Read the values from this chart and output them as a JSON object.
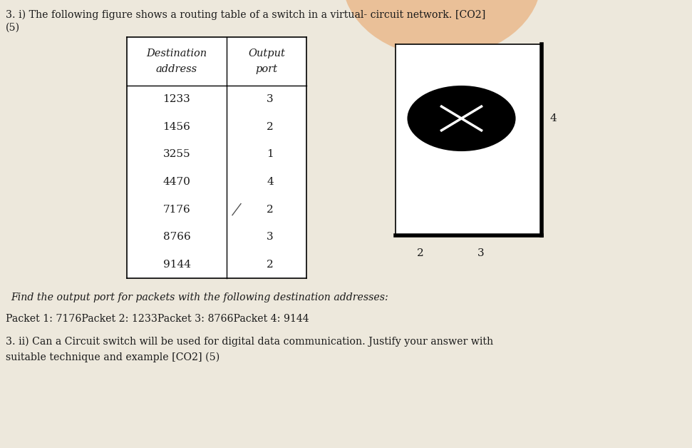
{
  "title_line1": "3. i) The following figure shows a routing table of a switch in a virtual- circuit network. [CO2]",
  "title_line2": "(5)",
  "table_headers_col1": [
    "Destination",
    "address"
  ],
  "table_headers_col2": [
    "Output",
    "port"
  ],
  "table_rows": [
    [
      "1233",
      "3"
    ],
    [
      "1456",
      "2"
    ],
    [
      "3255",
      "1"
    ],
    [
      "4470",
      "4"
    ],
    [
      "7176",
      "2"
    ],
    [
      "8766",
      "3"
    ],
    [
      "9144",
      "2"
    ]
  ],
  "find_text": "Find the output port for packets with the following destination addresses:",
  "packet_text": "Packet 1: 7176Packet 2: 1233Packet 3: 8766Packet 4: 9144",
  "bottom_line1": "3. ii) Can a Circuit switch will be used for digital data communication. Justify your answer with",
  "bottom_line2": "suitable technique and example [CO2] (5)",
  "bg_color": "#ede8dc",
  "table_bg": "#ffffff",
  "text_color": "#1a1a1a",
  "sw_port2_label": "2",
  "sw_port3_label": "3",
  "sw_port4_label": "4"
}
